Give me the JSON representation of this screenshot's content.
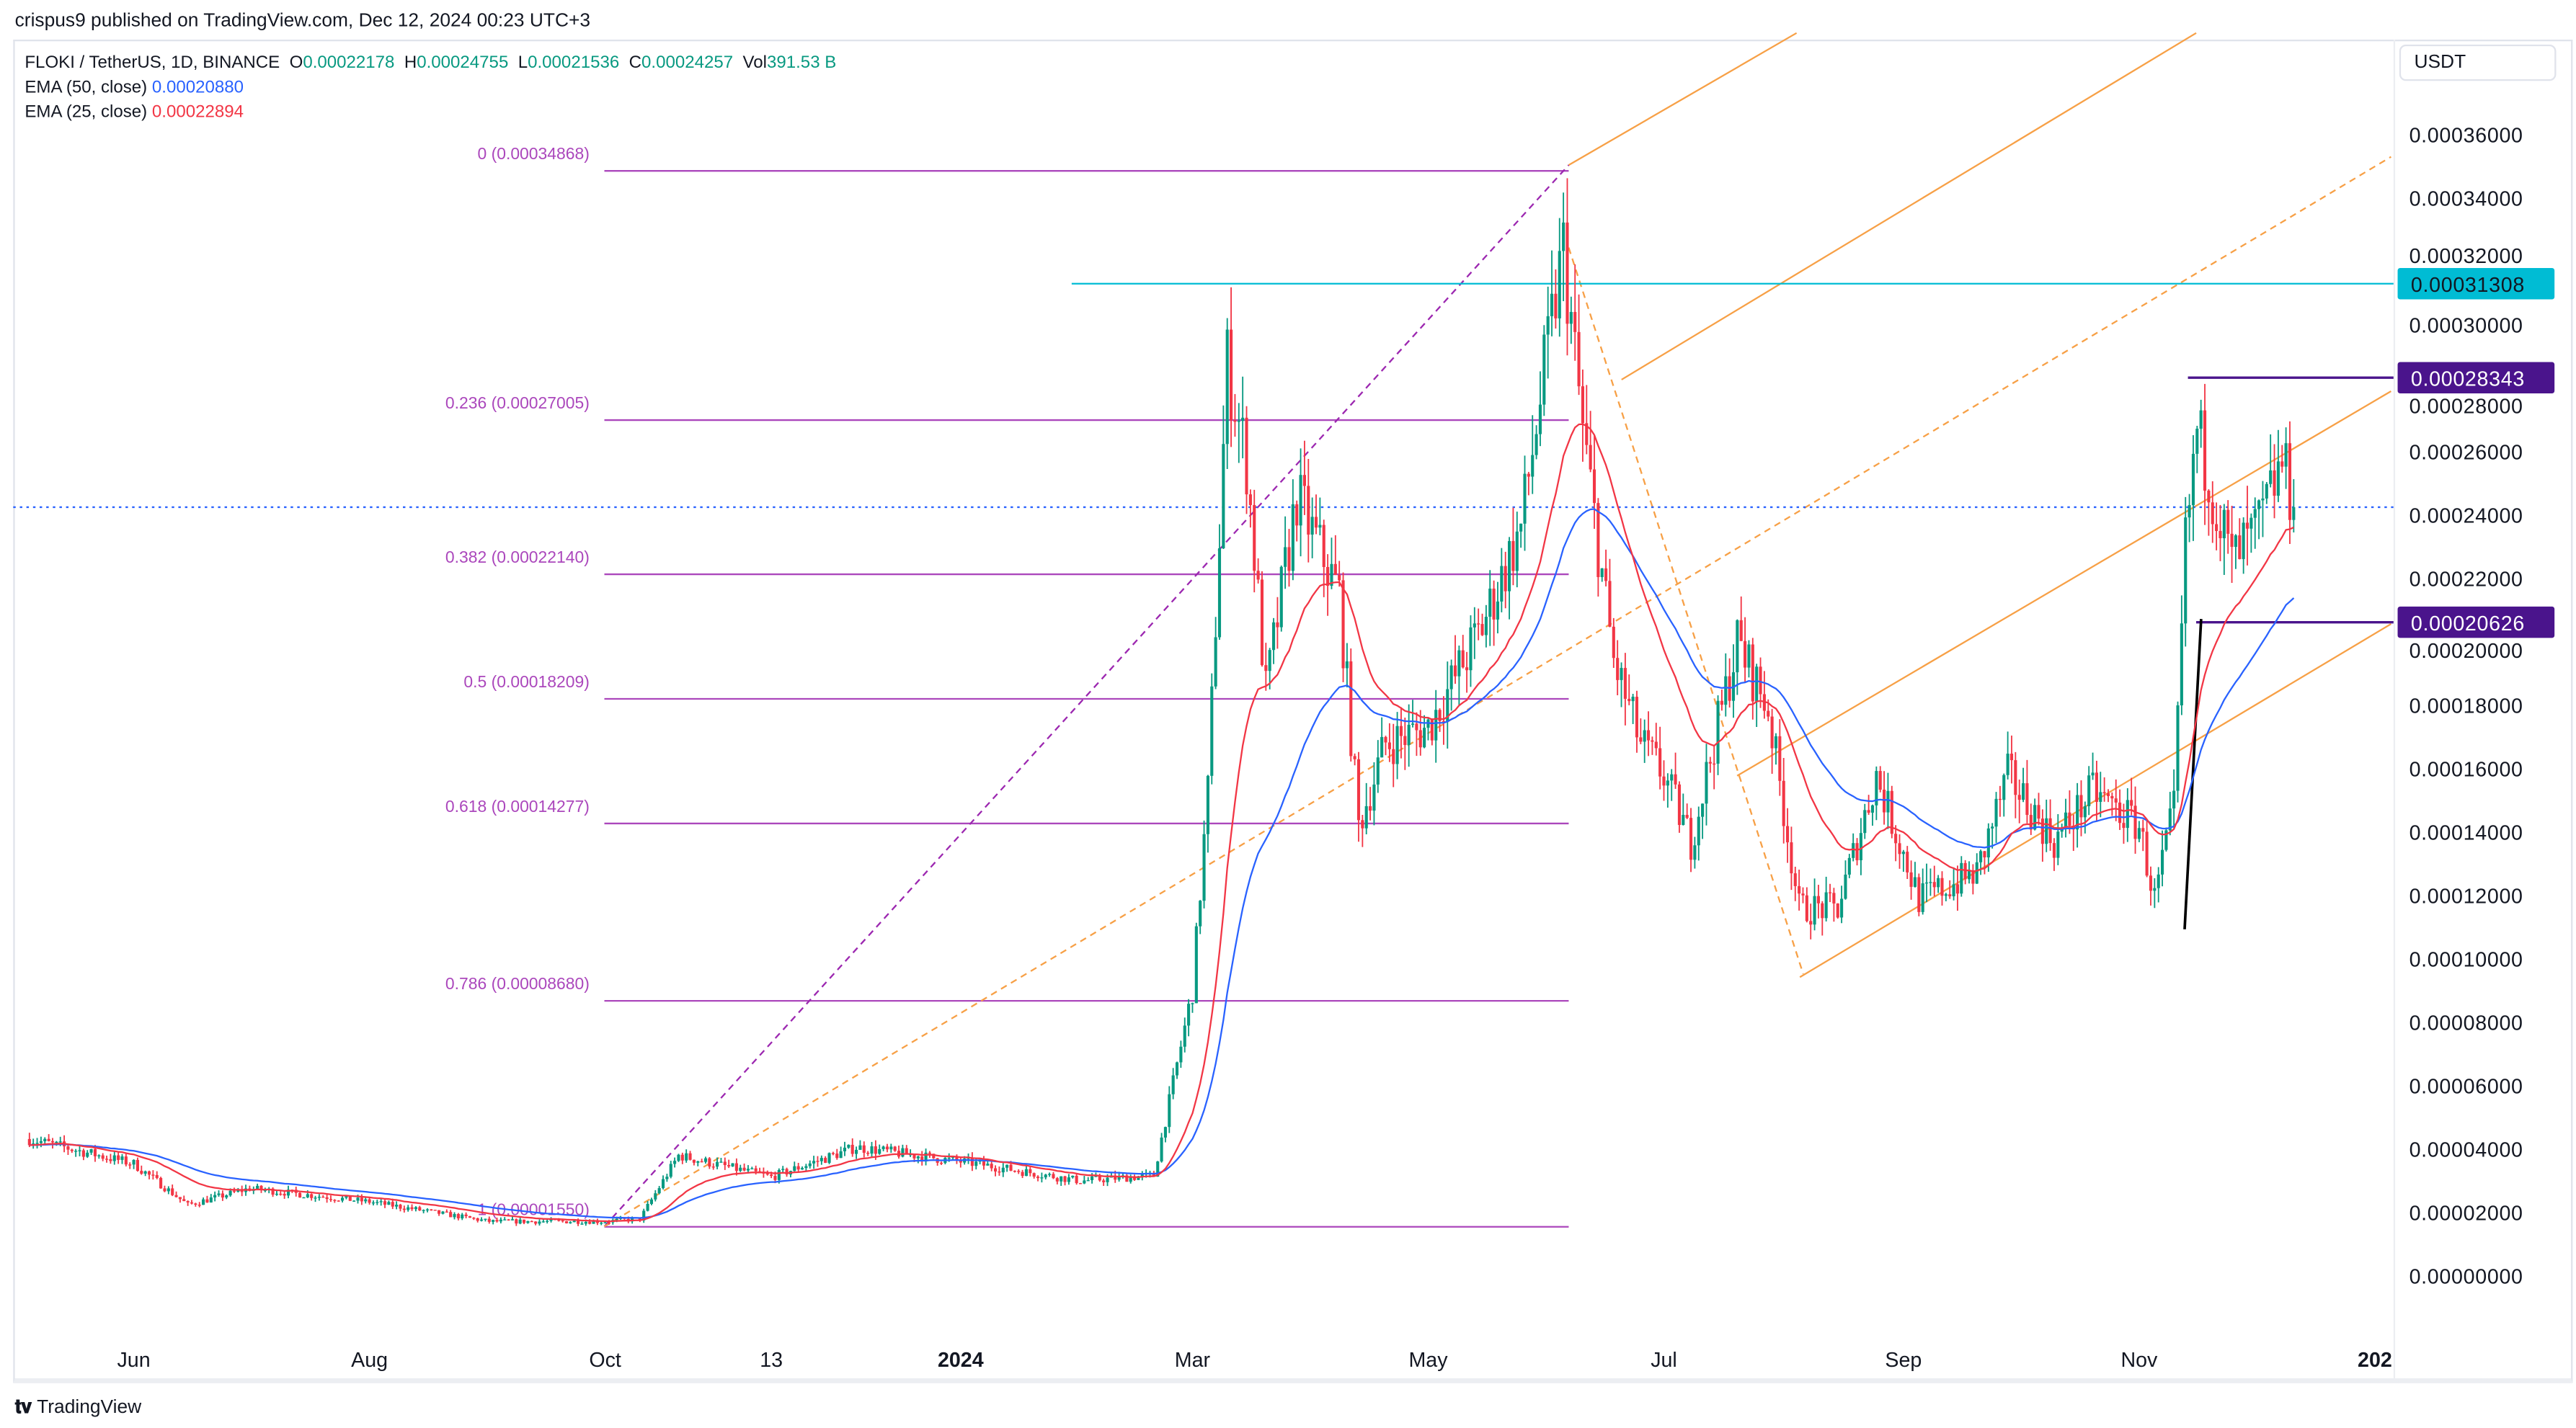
{
  "header": {
    "published": "crispus9 published on TradingView.com, Dec 12, 2024 00:23 UTC+3"
  },
  "legend": {
    "symbol": "FLOKI / TetherUS, 1D, BINANCE",
    "o_label": "O",
    "o": "0.00022178",
    "h_label": "H",
    "h": "0.00024755",
    "l_label": "L",
    "l": "0.00021536",
    "c_label": "C",
    "c": "0.00024257",
    "vol_label": "Vol",
    "vol": "391.53 B",
    "ema50_label": "EMA (50, close)",
    "ema50": "0.00020880",
    "ema25_label": "EMA (25, close)",
    "ema25": "0.00022894"
  },
  "currency": "USDT",
  "footer": {
    "brand": "TradingView"
  },
  "colors": {
    "up": "#089981",
    "down": "#f23645",
    "ema50": "#2962ff",
    "ema25": "#f23645",
    "fib": "#ab47bc",
    "trend": "#f7a046",
    "cyan": "#00bcd4",
    "purple": "#4a148c"
  },
  "chart_data": {
    "type": "candlestick",
    "title": "FLOKI / TetherUS, 1D, BINANCE",
    "ylim": [
      0,
      0.00037
    ],
    "y_ticks": [
      "0.00036000",
      "0.00034000",
      "0.00032000",
      "0.00030000",
      "0.00028000",
      "0.00026000",
      "0.00024000",
      "0.00022000",
      "0.00020000",
      "0.00018000",
      "0.00016000",
      "0.00014000",
      "0.00012000",
      "0.00010000",
      "0.00008000",
      "0.00006000",
      "0.00004000",
      "0.00002000",
      "0.00000000"
    ],
    "y_tick_values": [
      0.00036,
      0.00034,
      0.00032,
      0.0003,
      0.00028,
      0.00026,
      0.00024,
      0.00022,
      0.0002,
      0.00018,
      0.00016,
      0.00014,
      0.00012,
      0.0001,
      8e-05,
      6e-05,
      4e-05,
      2e-05,
      0
    ],
    "x_ticks": [
      {
        "label": "Jun",
        "date": "2023-06-01",
        "bold": false
      },
      {
        "label": "Aug",
        "date": "2023-08-01",
        "bold": false
      },
      {
        "label": "Oct",
        "date": "2023-10-01",
        "bold": false
      },
      {
        "label": "13",
        "date": "2023-11-13",
        "bold": false
      },
      {
        "label": "2024",
        "date": "2024-01-01",
        "bold": true
      },
      {
        "label": "Mar",
        "date": "2024-03-01",
        "bold": false
      },
      {
        "label": "May",
        "date": "2024-05-01",
        "bold": false
      },
      {
        "label": "Jul",
        "date": "2024-07-01",
        "bold": false
      },
      {
        "label": "Sep",
        "date": "2024-09-01",
        "bold": false
      },
      {
        "label": "Nov",
        "date": "2024-11-01",
        "bold": false
      },
      {
        "label": "202",
        "date": "2025-01-01",
        "bold": true
      }
    ],
    "close_path_approx": [
      [
        "2023-05-05",
        4.32e-05
      ],
      [
        "2023-06-01",
        3.54e-05
      ],
      [
        "2023-06-15",
        2.24e-05
      ],
      [
        "2023-07-01",
        2.76e-05
      ],
      [
        "2023-08-01",
        2.34e-05
      ],
      [
        "2023-09-01",
        1.72e-05
      ],
      [
        "2023-10-01",
        1.72e-05
      ],
      [
        "2023-10-10",
        1.8e-05
      ],
      [
        "2023-10-20",
        3.8e-05
      ],
      [
        "2023-11-13",
        3.12e-05
      ],
      [
        "2023-12-05",
        4.06e-05
      ],
      [
        "2024-01-05",
        3.54e-05
      ],
      [
        "2024-02-01",
        3e-05
      ],
      [
        "2024-02-20",
        3.17e-05
      ],
      [
        "2024-03-01",
        9e-05
      ],
      [
        "2024-03-05",
        0.000153
      ],
      [
        "2024-03-10",
        0.000288
      ],
      [
        "2024-03-15",
        0.000257
      ],
      [
        "2024-03-20",
        0.000184
      ],
      [
        "2024-03-28",
        0.000246
      ],
      [
        "2024-04-08",
        0.000215
      ],
      [
        "2024-04-13",
        0.000142
      ],
      [
        "2024-04-20",
        0.000168
      ],
      [
        "2024-05-01",
        0.000173
      ],
      [
        "2024-05-15",
        0.000205
      ],
      [
        "2024-05-25",
        0.000236
      ],
      [
        "2024-06-03",
        0.000309
      ],
      [
        "2024-06-05",
        0.000324
      ],
      [
        "2024-06-10",
        0.000267
      ],
      [
        "2024-06-18",
        0.000194
      ],
      [
        "2024-06-25",
        0.000168
      ],
      [
        "2024-07-01",
        0.000158
      ],
      [
        "2024-07-08",
        0.000137
      ],
      [
        "2024-07-20",
        0.0002
      ],
      [
        "2024-07-28",
        0.000179
      ],
      [
        "2024-08-05",
        0.000116
      ],
      [
        "2024-08-15",
        0.000116
      ],
      [
        "2024-08-25",
        0.000158
      ],
      [
        "2024-09-05",
        0.000119
      ],
      [
        "2024-09-20",
        0.000127
      ],
      [
        "2024-09-28",
        0.000158
      ],
      [
        "2024-10-10",
        0.000137
      ],
      [
        "2024-10-20",
        0.000153
      ],
      [
        "2024-11-01",
        0.000142
      ],
      [
        "2024-11-05",
        0.000119
      ],
      [
        "2024-11-10",
        0.000147
      ],
      [
        "2024-11-13",
        0.000231
      ],
      [
        "2024-11-16",
        0.000267
      ],
      [
        "2024-11-25",
        0.000225
      ],
      [
        "2024-12-02",
        0.000236
      ],
      [
        "2024-12-08",
        0.000257
      ],
      [
        "2024-12-11",
        0.00024257
      ]
    ],
    "last_price": 0.00024257,
    "fibonacci": [
      {
        "label": "0 (0.00034868)",
        "price": 0.00034868
      },
      {
        "label": "0.236 (0.00027005)",
        "price": 0.00027005
      },
      {
        "label": "0.382 (0.00022140)",
        "price": 0.0002214
      },
      {
        "label": "0.5 (0.00018209)",
        "price": 0.00018209
      },
      {
        "label": "0.618 (0.00014277)",
        "price": 0.00014277
      },
      {
        "label": "0.786 (0.00008680)",
        "price": 8.68e-05
      },
      {
        "label": "1 (0.00001550)",
        "price": 1.55e-05
      }
    ],
    "price_labels": [
      {
        "text": "0.00031308",
        "price": 0.00031308,
        "color": "#00bcd4",
        "text_color": "#131722"
      },
      {
        "text": "0.00028343",
        "price": 0.00028343,
        "color": "#4a148c",
        "text_color": "#ffffff"
      },
      {
        "text": "0.00020626",
        "price": 0.00020626,
        "color": "#4a148c",
        "text_color": "#ffffff"
      }
    ]
  }
}
